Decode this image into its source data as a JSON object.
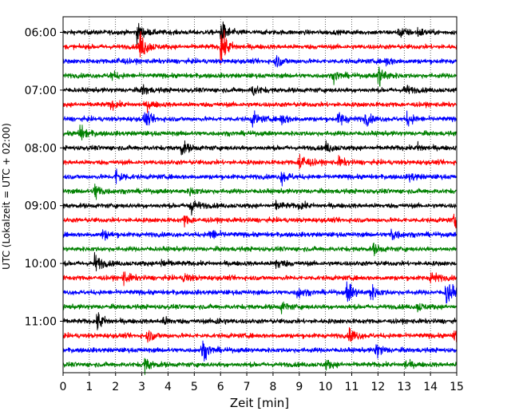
{
  "chart_data": {
    "type": "line",
    "title": "",
    "xlabel": "Zeit  [min]",
    "ylabel": "UTC (Lokalzeit = UTC + 02:00)",
    "xlim": [
      0,
      15
    ],
    "x_ticks": [
      "0",
      "1",
      "2",
      "3",
      "4",
      "5",
      "6",
      "7",
      "8",
      "9",
      "10",
      "11",
      "12",
      "13",
      "14",
      "15"
    ],
    "y_tick_labels": [
      "06:00",
      "07:00",
      "08:00",
      "09:00",
      "10:00",
      "11:00"
    ],
    "grid": "vertical dotted",
    "trace_colors": [
      "#000000",
      "#ff0000",
      "#0000ff",
      "#008000"
    ],
    "traces": [
      {
        "start": "06:00",
        "color": "#000000",
        "events": [
          [
            2.8,
            0.9
          ],
          [
            6.0,
            1.2
          ],
          [
            12.8,
            0.6
          ],
          [
            13.5,
            0.4
          ]
        ]
      },
      {
        "start": "06:15",
        "color": "#ff0000",
        "events": [
          [
            2.9,
            1.6
          ],
          [
            6.0,
            1.8
          ]
        ]
      },
      {
        "start": "06:30",
        "color": "#0000ff",
        "events": [
          [
            2.0,
            0.4
          ],
          [
            8.1,
            0.6
          ],
          [
            12.3,
            0.4
          ]
        ]
      },
      {
        "start": "06:45",
        "color": "#008000",
        "events": [
          [
            1.8,
            0.4
          ],
          [
            10.3,
            0.5
          ],
          [
            12.0,
            1.2
          ]
        ]
      },
      {
        "start": "07:00",
        "color": "#000000",
        "events": [
          [
            3.0,
            0.5
          ],
          [
            7.2,
            0.6
          ],
          [
            13.0,
            0.5
          ]
        ]
      },
      {
        "start": "07:15",
        "color": "#ff0000",
        "events": [
          [
            1.8,
            0.4
          ],
          [
            3.2,
            0.4
          ]
        ]
      },
      {
        "start": "07:30",
        "color": "#0000ff",
        "events": [
          [
            3.1,
            0.7
          ],
          [
            7.2,
            0.7
          ],
          [
            8.3,
            0.6
          ],
          [
            10.5,
            0.7
          ],
          [
            11.5,
            0.6
          ],
          [
            13.1,
            0.6
          ]
        ]
      },
      {
        "start": "07:45",
        "color": "#008000",
        "events": [
          [
            0.6,
            0.9
          ]
        ]
      },
      {
        "start": "08:00",
        "color": "#000000",
        "events": [
          [
            4.5,
            0.7
          ],
          [
            10.0,
            0.5
          ],
          [
            13.5,
            0.4
          ]
        ]
      },
      {
        "start": "08:15",
        "color": "#ff0000",
        "events": [
          [
            9.0,
            1.2
          ],
          [
            10.5,
            0.4
          ]
        ]
      },
      {
        "start": "08:30",
        "color": "#0000ff",
        "events": [
          [
            2.0,
            0.8
          ],
          [
            8.3,
            0.7
          ],
          [
            13.2,
            0.4
          ]
        ]
      },
      {
        "start": "08:45",
        "color": "#008000",
        "events": [
          [
            1.2,
            0.9
          ],
          [
            4.8,
            0.4
          ]
        ]
      },
      {
        "start": "09:00",
        "color": "#000000",
        "events": [
          [
            4.8,
            1.0
          ],
          [
            8.1,
            0.4
          ],
          [
            9.0,
            0.3
          ]
        ]
      },
      {
        "start": "09:15",
        "color": "#ff0000",
        "events": [
          [
            4.6,
            0.5
          ],
          [
            14.9,
            1.0
          ]
        ]
      },
      {
        "start": "09:30",
        "color": "#0000ff",
        "events": [
          [
            1.5,
            0.5
          ],
          [
            5.6,
            0.6
          ],
          [
            12.5,
            0.7
          ]
        ]
      },
      {
        "start": "09:45",
        "color": "#008000",
        "events": [
          [
            11.8,
            0.5
          ]
        ]
      },
      {
        "start": "10:00",
        "color": "#000000",
        "events": [
          [
            1.2,
            0.9
          ],
          [
            3.7,
            0.5
          ],
          [
            8.1,
            0.6
          ]
        ]
      },
      {
        "start": "10:15",
        "color": "#ff0000",
        "events": [
          [
            2.3,
            0.6
          ],
          [
            4.6,
            0.5
          ],
          [
            14.0,
            0.7
          ]
        ]
      },
      {
        "start": "10:30",
        "color": "#0000ff",
        "events": [
          [
            8.9,
            0.6
          ],
          [
            10.8,
            1.2
          ],
          [
            11.7,
            0.8
          ],
          [
            14.6,
            1.4
          ]
        ]
      },
      {
        "start": "10:45",
        "color": "#008000",
        "events": [
          [
            8.3,
            0.5
          ],
          [
            13.5,
            0.4
          ]
        ]
      },
      {
        "start": "11:00",
        "color": "#000000",
        "events": [
          [
            1.3,
            0.9
          ],
          [
            3.8,
            0.4
          ],
          [
            5.8,
            0.4
          ]
        ]
      },
      {
        "start": "11:15",
        "color": "#ff0000",
        "events": [
          [
            3.2,
            0.6
          ],
          [
            10.9,
            0.8
          ],
          [
            14.9,
            1.0
          ]
        ]
      },
      {
        "start": "11:30",
        "color": "#0000ff",
        "events": [
          [
            5.3,
            1.0
          ],
          [
            11.9,
            0.8
          ]
        ]
      },
      {
        "start": "11:45",
        "color": "#008000",
        "events": [
          [
            3.1,
            0.7
          ],
          [
            10.0,
            0.4
          ],
          [
            13.0,
            0.4
          ]
        ]
      }
    ]
  }
}
